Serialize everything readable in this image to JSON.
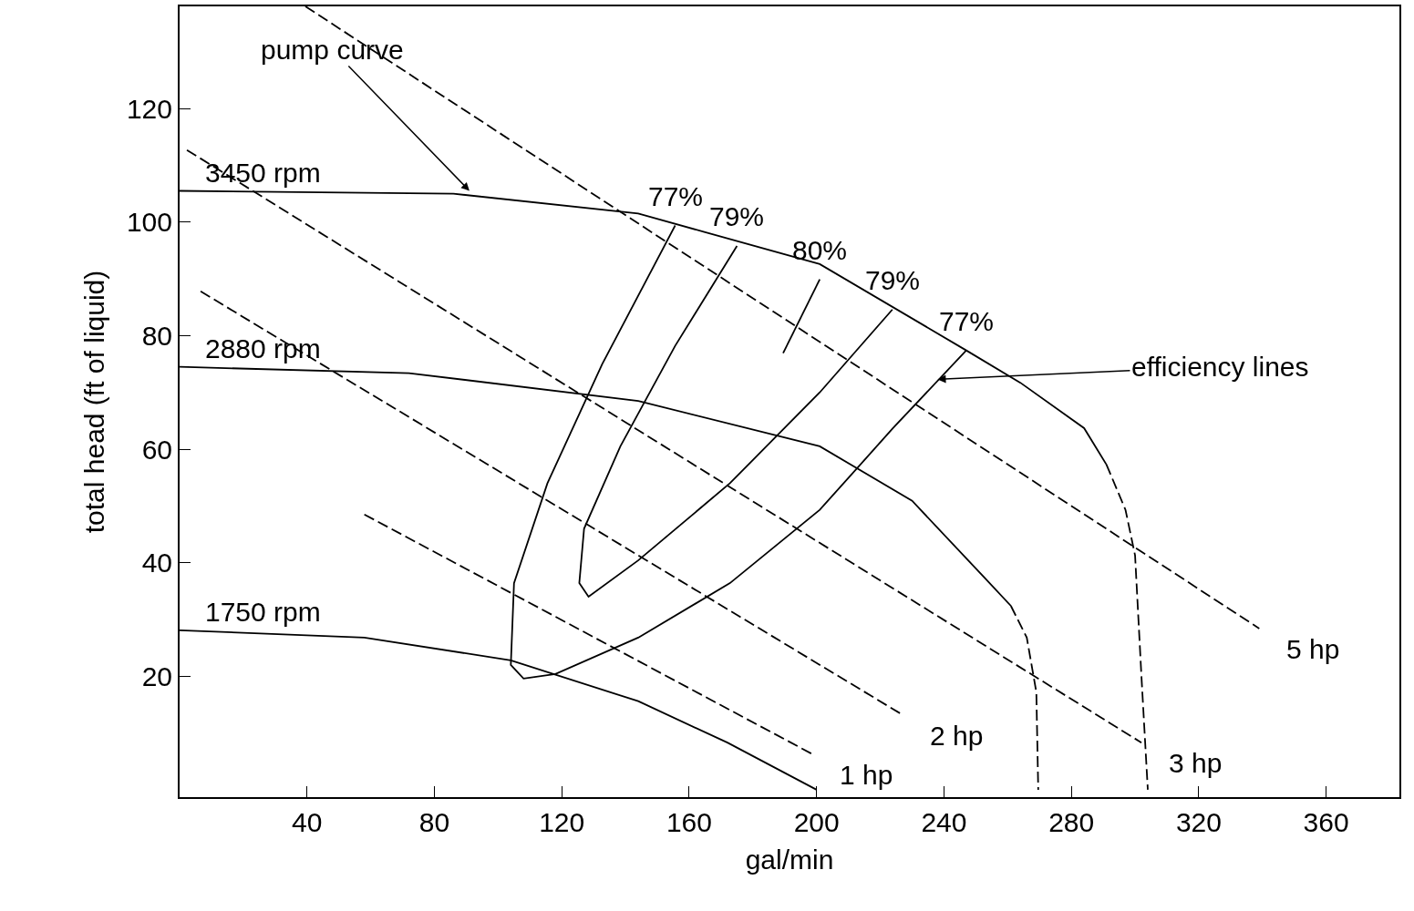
{
  "chart_data": {
    "type": "line",
    "xlabel": "gal/min",
    "ylabel": "total head (ft of liquid)",
    "xlim": [
      0,
      383
    ],
    "ylim": [
      -1.3,
      138
    ],
    "xticks": [
      40,
      80,
      120,
      160,
      200,
      240,
      280,
      320,
      360
    ],
    "yticks": [
      20,
      40,
      60,
      80,
      100,
      120
    ],
    "grid": false,
    "legend": false,
    "marker": "none",
    "series": [
      {
        "name": "3450 rpm",
        "color": "#000000",
        "line_style": "solid",
        "x": [
          0,
          86,
          144,
          201,
          247,
          264,
          284,
          291
        ],
        "values": [
          105.5,
          105,
          101.5,
          92.6,
          77.4,
          71.7,
          63.7,
          57.3
        ]
      },
      {
        "color": "#000000",
        "line_style": "dashed",
        "x": [
          291,
          297,
          300,
          302,
          304
        ],
        "values": [
          57.3,
          49.3,
          41.3,
          20,
          0
        ]
      },
      {
        "name": "2880 rpm",
        "color": "#000000",
        "line_style": "solid",
        "x": [
          0,
          72,
          144,
          201,
          230,
          253,
          261
        ],
        "values": [
          74.5,
          73.4,
          68.5,
          60.5,
          50.9,
          37.2,
          32.4
        ]
      },
      {
        "color": "#000000",
        "line_style": "dashed",
        "x": [
          261,
          266,
          269,
          269.6
        ],
        "values": [
          32.4,
          26.8,
          17.2,
          0
        ]
      },
      {
        "name": "1750 rpm",
        "color": "#000000",
        "line_style": "solid",
        "x": [
          0,
          58,
          104,
          144,
          172,
          200
        ],
        "values": [
          28.1,
          26.8,
          22.8,
          15.6,
          8.3,
          0
        ]
      },
      {
        "name": "5 hp",
        "color": "#000000",
        "line_style": "dashed",
        "x": [
          39.5,
          339
        ],
        "values": [
          138,
          28.4
        ]
      },
      {
        "name": "3 hp",
        "color": "#000000",
        "line_style": "dashed",
        "x": [
          2.3,
          302
        ],
        "values": [
          112.7,
          8.3
        ]
      },
      {
        "name": "2 hp",
        "color": "#000000",
        "line_style": "dashed",
        "x": [
          6.6,
          227
        ],
        "values": [
          87.8,
          13.2
        ]
      },
      {
        "name": "1 hp",
        "color": "#000000",
        "line_style": "dashed",
        "x": [
          58,
          198.6
        ],
        "values": [
          48.5,
          6.3
        ]
      },
      {
        "name": "77%",
        "color": "#000000",
        "line_style": "solid",
        "x": [
          155.6,
          132.7,
          115.5,
          105,
          104,
          108,
          118,
          144,
          172.8,
          201,
          224,
          247
        ],
        "values": [
          99.4,
          75,
          54,
          36.4,
          22,
          19.6,
          20.4,
          26.8,
          36.4,
          49.3,
          63.7,
          77.4
        ]
      },
      {
        "name": "79%",
        "color": "#000000",
        "line_style": "solid",
        "x": [
          175,
          155.6,
          138.4,
          127,
          125.5,
          128.4,
          144,
          172.8,
          201,
          223.8
        ],
        "values": [
          95.8,
          78.2,
          60.5,
          46,
          36.4,
          34,
          40.4,
          54,
          70,
          84.6
        ]
      },
      {
        "name": "80%",
        "color": "#000000",
        "line_style": "solid",
        "x": [
          201,
          189.5
        ],
        "values": [
          89.9,
          76.9
        ]
      }
    ],
    "annotations": [
      {
        "text": "pump curve",
        "x": 91,
        "y": 105.5
      },
      {
        "text": "efficiency lines",
        "x": 238,
        "y": 72.3
      },
      {
        "text": "79%",
        "x": 223.8,
        "y": 84.6
      },
      {
        "text": "77%",
        "x": 247,
        "y": 77.4
      }
    ]
  }
}
